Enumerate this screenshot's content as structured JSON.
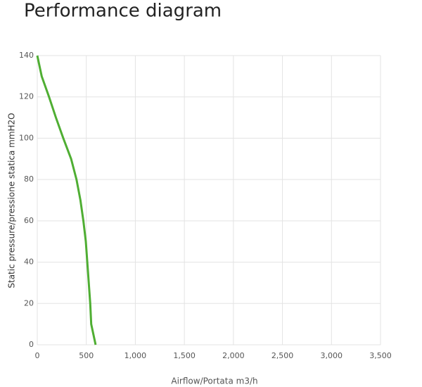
{
  "chart_data": {
    "type": "line",
    "title": "Performance diagram",
    "x_label": "Airflow/Portata m3/h",
    "y_label": "Static pressure/pressione statica mmH2O",
    "series": [
      {
        "color": "#4fae33",
        "x": [
          0,
          45,
          120,
          190,
          265,
          345,
          400,
          440,
          470,
          495,
          510,
          525,
          540,
          550,
          595
        ],
        "values": [
          140,
          130,
          120,
          110,
          100,
          90,
          80,
          70,
          60,
          50,
          40,
          30,
          20,
          10,
          0
        ]
      }
    ],
    "xlim": [
      0,
      3500
    ],
    "xticks": [
      0,
      500,
      {
        "value": 1000,
        "label": "1,000"
      },
      {
        "value": 1500,
        "label": "1,500"
      },
      {
        "value": 2000,
        "label": "2,000"
      },
      {
        "value": 2500,
        "label": "2,500"
      },
      {
        "value": 3000,
        "label": "3,000"
      },
      {
        "value": 3500,
        "label": "3,500"
      }
    ],
    "ylim": [
      0,
      140
    ],
    "yticks": [
      0,
      20,
      40,
      60,
      80,
      100,
      120,
      140
    ],
    "grid": true
  }
}
